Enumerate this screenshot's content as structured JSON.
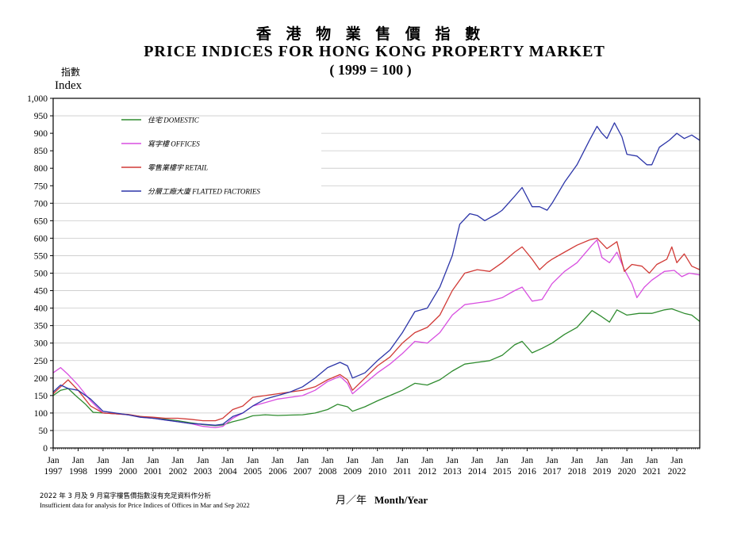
{
  "chart_data": {
    "type": "line",
    "title": "香 港 物 業 售 價 指 數",
    "title_en": "PRICE INDICES FOR HONG KONG PROPERTY MARKET",
    "subtitle": "( 1999 = 100 )",
    "ylabel_zh": "指數",
    "ylabel": "Index",
    "xlabel_zh": "月／年",
    "xlabel": "Month/Year",
    "ylim": [
      0,
      1000
    ],
    "xlim": [
      1997.0,
      2022.92
    ],
    "yticks": [
      "0",
      "50",
      "100",
      "150",
      "200",
      "250",
      "300",
      "350",
      "400",
      "450",
      "500",
      "550",
      "600",
      "650",
      "700",
      "750",
      "800",
      "850",
      "900",
      "950",
      "1,000"
    ],
    "xticks": [
      {
        "value": 1997,
        "month": "Jan",
        "year": "1997"
      },
      {
        "value": 1998,
        "month": "Jan",
        "year": "1998"
      },
      {
        "value": 1999,
        "month": "Jan",
        "year": "1999"
      },
      {
        "value": 2000,
        "month": "Jan",
        "year": "2000"
      },
      {
        "value": 2001,
        "month": "Jan",
        "year": "2001"
      },
      {
        "value": 2002,
        "month": "Jan",
        "year": "2002"
      },
      {
        "value": 2003,
        "month": "Jan",
        "year": "2003"
      },
      {
        "value": 2004,
        "month": "Jan",
        "year": "2004"
      },
      {
        "value": 2005,
        "month": "Jan",
        "year": "2005"
      },
      {
        "value": 2006,
        "month": "Jan",
        "year": "2006"
      },
      {
        "value": 2007,
        "month": "Jan",
        "year": "2007"
      },
      {
        "value": 2008,
        "month": "Jan",
        "year": "2008"
      },
      {
        "value": 2009,
        "month": "Jan",
        "year": "2009"
      },
      {
        "value": 2010,
        "month": "Jan",
        "year": "2010"
      },
      {
        "value": 2011,
        "month": "Jan",
        "year": "2011"
      },
      {
        "value": 2012,
        "month": "Jan",
        "year": "2012"
      },
      {
        "value": 2013,
        "month": "Jan",
        "year": "2013"
      },
      {
        "value": 2014,
        "month": "Jan",
        "year": "2014"
      },
      {
        "value": 2015,
        "month": "Jan",
        "year": "2015"
      },
      {
        "value": 2016,
        "month": "Jan",
        "year": "2016"
      },
      {
        "value": 2017,
        "month": "Jan",
        "year": "2017"
      },
      {
        "value": 2018,
        "month": "Jan",
        "year": "2018"
      },
      {
        "value": 2019,
        "month": "Jan",
        "year": "2019"
      },
      {
        "value": 2020,
        "month": "Jan",
        "year": "2020"
      },
      {
        "value": 2021,
        "month": "Jan",
        "year": "2021"
      },
      {
        "value": 2022,
        "month": "Jan",
        "year": "2022"
      }
    ],
    "grid": "horizontal",
    "legend_position": "top-left",
    "series": [
      {
        "name": "住宅  DOMESTIC",
        "color": "#2e8b2e",
        "points": [
          [
            1997.0,
            150
          ],
          [
            1997.3,
            165
          ],
          [
            1997.6,
            170
          ],
          [
            1997.9,
            150
          ],
          [
            1998.3,
            125
          ],
          [
            1998.6,
            102
          ],
          [
            1999.0,
            100
          ],
          [
            1999.5,
            98
          ],
          [
            2000.0,
            95
          ],
          [
            2000.5,
            90
          ],
          [
            2001.0,
            85
          ],
          [
            2001.5,
            82
          ],
          [
            2002.0,
            78
          ],
          [
            2002.5,
            72
          ],
          [
            2003.0,
            67
          ],
          [
            2003.5,
            64
          ],
          [
            2003.8,
            66
          ],
          [
            2004.2,
            75
          ],
          [
            2004.6,
            82
          ],
          [
            2005.0,
            92
          ],
          [
            2005.5,
            95
          ],
          [
            2006.0,
            93
          ],
          [
            2006.5,
            94
          ],
          [
            2007.0,
            95
          ],
          [
            2007.5,
            100
          ],
          [
            2008.0,
            110
          ],
          [
            2008.4,
            125
          ],
          [
            2008.8,
            118
          ],
          [
            2009.0,
            105
          ],
          [
            2009.5,
            118
          ],
          [
            2010.0,
            135
          ],
          [
            2010.5,
            150
          ],
          [
            2011.0,
            165
          ],
          [
            2011.5,
            185
          ],
          [
            2012.0,
            180
          ],
          [
            2012.5,
            195
          ],
          [
            2013.0,
            220
          ],
          [
            2013.5,
            240
          ],
          [
            2014.0,
            245
          ],
          [
            2014.5,
            250
          ],
          [
            2015.0,
            265
          ],
          [
            2015.5,
            295
          ],
          [
            2015.8,
            305
          ],
          [
            2016.2,
            272
          ],
          [
            2016.6,
            285
          ],
          [
            2017.0,
            300
          ],
          [
            2017.5,
            325
          ],
          [
            2018.0,
            345
          ],
          [
            2018.6,
            393
          ],
          [
            2019.0,
            375
          ],
          [
            2019.3,
            360
          ],
          [
            2019.6,
            395
          ],
          [
            2020.0,
            380
          ],
          [
            2020.5,
            385
          ],
          [
            2021.0,
            385
          ],
          [
            2021.5,
            395
          ],
          [
            2021.8,
            398
          ],
          [
            2022.3,
            385
          ],
          [
            2022.6,
            380
          ],
          [
            2022.92,
            362
          ]
        ]
      },
      {
        "name": "寫字樓  OFFICES",
        "color": "#d84fe0",
        "points": [
          [
            1997.0,
            215
          ],
          [
            1997.3,
            230
          ],
          [
            1997.6,
            210
          ],
          [
            1998.0,
            180
          ],
          [
            1998.5,
            135
          ],
          [
            1999.0,
            100
          ],
          [
            1999.5,
            98
          ],
          [
            2000.0,
            95
          ],
          [
            2000.5,
            88
          ],
          [
            2001.0,
            85
          ],
          [
            2001.5,
            80
          ],
          [
            2002.0,
            75
          ],
          [
            2002.5,
            70
          ],
          [
            2003.0,
            62
          ],
          [
            2003.5,
            58
          ],
          [
            2003.8,
            62
          ],
          [
            2004.2,
            85
          ],
          [
            2004.6,
            100
          ],
          [
            2005.0,
            120
          ],
          [
            2005.5,
            130
          ],
          [
            2006.0,
            140
          ],
          [
            2006.5,
            145
          ],
          [
            2007.0,
            150
          ],
          [
            2007.5,
            165
          ],
          [
            2008.0,
            190
          ],
          [
            2008.5,
            205
          ],
          [
            2008.8,
            185
          ],
          [
            2009.0,
            155
          ],
          [
            2009.5,
            185
          ],
          [
            2010.0,
            215
          ],
          [
            2010.5,
            240
          ],
          [
            2011.0,
            270
          ],
          [
            2011.5,
            305
          ],
          [
            2012.0,
            300
          ],
          [
            2012.5,
            330
          ],
          [
            2013.0,
            380
          ],
          [
            2013.5,
            410
          ],
          [
            2014.0,
            415
          ],
          [
            2014.5,
            420
          ],
          [
            2015.0,
            430
          ],
          [
            2015.5,
            450
          ],
          [
            2015.8,
            460
          ],
          [
            2016.2,
            420
          ],
          [
            2016.6,
            425
          ],
          [
            2017.0,
            470
          ],
          [
            2017.5,
            505
          ],
          [
            2018.0,
            530
          ],
          [
            2018.6,
            580
          ],
          [
            2018.8,
            595
          ],
          [
            2019.0,
            545
          ],
          [
            2019.3,
            530
          ],
          [
            2019.6,
            560
          ],
          [
            2019.9,
            510
          ],
          [
            2020.2,
            470
          ],
          [
            2020.4,
            430
          ],
          [
            2020.7,
            460
          ],
          [
            2021.0,
            480
          ],
          [
            2021.5,
            505
          ],
          [
            2021.9,
            508
          ],
          [
            2022.2,
            490
          ],
          [
            2022.5,
            500
          ],
          [
            2022.92,
            495
          ]
        ]
      },
      {
        "name": "零售業樓宇  RETAIL",
        "color": "#d13a36",
        "points": [
          [
            1997.0,
            155
          ],
          [
            1997.3,
            175
          ],
          [
            1997.6,
            195
          ],
          [
            1998.0,
            165
          ],
          [
            1998.5,
            120
          ],
          [
            1999.0,
            100
          ],
          [
            1999.5,
            98
          ],
          [
            2000.0,
            96
          ],
          [
            2000.5,
            90
          ],
          [
            2001.0,
            88
          ],
          [
            2001.5,
            85
          ],
          [
            2002.0,
            85
          ],
          [
            2002.5,
            82
          ],
          [
            2003.0,
            78
          ],
          [
            2003.5,
            78
          ],
          [
            2003.8,
            85
          ],
          [
            2004.2,
            110
          ],
          [
            2004.6,
            120
          ],
          [
            2005.0,
            145
          ],
          [
            2005.5,
            150
          ],
          [
            2006.0,
            155
          ],
          [
            2006.5,
            160
          ],
          [
            2007.0,
            165
          ],
          [
            2007.5,
            175
          ],
          [
            2008.0,
            195
          ],
          [
            2008.5,
            210
          ],
          [
            2008.8,
            195
          ],
          [
            2009.0,
            165
          ],
          [
            2009.5,
            200
          ],
          [
            2010.0,
            235
          ],
          [
            2010.5,
            260
          ],
          [
            2011.0,
            300
          ],
          [
            2011.5,
            330
          ],
          [
            2012.0,
            345
          ],
          [
            2012.5,
            380
          ],
          [
            2013.0,
            450
          ],
          [
            2013.5,
            500
          ],
          [
            2014.0,
            510
          ],
          [
            2014.5,
            505
          ],
          [
            2015.0,
            530
          ],
          [
            2015.5,
            560
          ],
          [
            2015.8,
            575
          ],
          [
            2016.2,
            540
          ],
          [
            2016.5,
            510
          ],
          [
            2016.8,
            530
          ],
          [
            2017.0,
            540
          ],
          [
            2017.5,
            560
          ],
          [
            2018.0,
            580
          ],
          [
            2018.5,
            595
          ],
          [
            2018.8,
            600
          ],
          [
            2019.2,
            570
          ],
          [
            2019.6,
            590
          ],
          [
            2019.9,
            505
          ],
          [
            2020.2,
            525
          ],
          [
            2020.6,
            520
          ],
          [
            2020.9,
            500
          ],
          [
            2021.2,
            525
          ],
          [
            2021.6,
            540
          ],
          [
            2021.8,
            575
          ],
          [
            2022.0,
            530
          ],
          [
            2022.3,
            555
          ],
          [
            2022.6,
            520
          ],
          [
            2022.92,
            510
          ]
        ]
      },
      {
        "name": "分層工廠大廈  FLATTED FACTORIES",
        "color": "#2c35a8",
        "points": [
          [
            1997.0,
            160
          ],
          [
            1997.3,
            180
          ],
          [
            1997.6,
            170
          ],
          [
            1998.0,
            165
          ],
          [
            1998.5,
            140
          ],
          [
            1999.0,
            105
          ],
          [
            1999.5,
            100
          ],
          [
            2000.0,
            95
          ],
          [
            2000.5,
            88
          ],
          [
            2001.0,
            85
          ],
          [
            2001.5,
            80
          ],
          [
            2002.0,
            75
          ],
          [
            2002.5,
            70
          ],
          [
            2003.0,
            68
          ],
          [
            2003.5,
            65
          ],
          [
            2003.8,
            68
          ],
          [
            2004.2,
            90
          ],
          [
            2004.6,
            100
          ],
          [
            2005.0,
            120
          ],
          [
            2005.5,
            140
          ],
          [
            2006.0,
            150
          ],
          [
            2006.5,
            160
          ],
          [
            2007.0,
            175
          ],
          [
            2007.5,
            200
          ],
          [
            2008.0,
            230
          ],
          [
            2008.5,
            245
          ],
          [
            2008.8,
            235
          ],
          [
            2009.0,
            200
          ],
          [
            2009.5,
            215
          ],
          [
            2010.0,
            250
          ],
          [
            2010.5,
            280
          ],
          [
            2011.0,
            330
          ],
          [
            2011.5,
            390
          ],
          [
            2012.0,
            400
          ],
          [
            2012.5,
            460
          ],
          [
            2013.0,
            550
          ],
          [
            2013.3,
            640
          ],
          [
            2013.7,
            670
          ],
          [
            2014.0,
            665
          ],
          [
            2014.3,
            650
          ],
          [
            2014.8,
            670
          ],
          [
            2015.0,
            680
          ],
          [
            2015.5,
            720
          ],
          [
            2015.8,
            745
          ],
          [
            2016.2,
            690
          ],
          [
            2016.5,
            690
          ],
          [
            2016.8,
            680
          ],
          [
            2017.0,
            700
          ],
          [
            2017.5,
            760
          ],
          [
            2018.0,
            810
          ],
          [
            2018.5,
            880
          ],
          [
            2018.8,
            920
          ],
          [
            2019.0,
            900
          ],
          [
            2019.2,
            885
          ],
          [
            2019.5,
            930
          ],
          [
            2019.8,
            890
          ],
          [
            2020.0,
            840
          ],
          [
            2020.4,
            835
          ],
          [
            2020.8,
            810
          ],
          [
            2021.0,
            810
          ],
          [
            2021.3,
            860
          ],
          [
            2021.7,
            880
          ],
          [
            2022.0,
            900
          ],
          [
            2022.3,
            885
          ],
          [
            2022.6,
            895
          ],
          [
            2022.92,
            880
          ]
        ]
      }
    ]
  },
  "notes": {
    "zh": "2022 年 3 月及 9 月寫字樓售價指數沒有充足資料作分析",
    "en": "Insufficient data for analysis for Price Indices of Offices in Mar and Sep 2022"
  }
}
